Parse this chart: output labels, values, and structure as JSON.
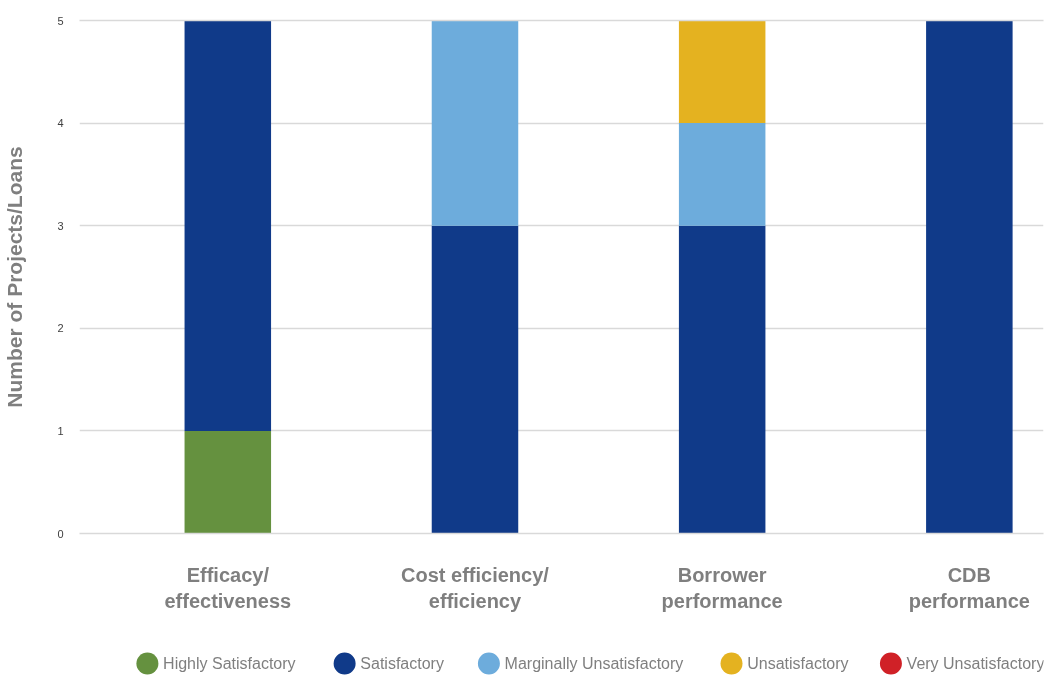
{
  "chart_data": {
    "type": "bar",
    "stacked": true,
    "ylabel": "Number of Projects/Loans",
    "categories": [
      "Efficacy/effectiveness",
      "Cost efficiency/efficiency",
      "Borrower performance",
      "CDB performance"
    ],
    "series": [
      {
        "name": "Highly Satisfactory",
        "color": "#65913f",
        "values": [
          1,
          0,
          0,
          0
        ]
      },
      {
        "name": "Satisfactory",
        "color": "#103a89",
        "values": [
          4,
          3,
          3,
          5
        ]
      },
      {
        "name": "Marginally Unsatisfactory",
        "color": "#6dacdc",
        "values": [
          0,
          2,
          1,
          0
        ]
      },
      {
        "name": "Unsatisfactory",
        "color": "#e4b220",
        "values": [
          0,
          0,
          1,
          0
        ]
      },
      {
        "name": "Very Unsatisfactory",
        "color": "#d02127",
        "values": [
          0,
          0,
          0,
          0
        ]
      }
    ],
    "ylim": [
      0,
      5
    ],
    "yticks": [
      0,
      1,
      2,
      3,
      4,
      5
    ],
    "grid": "y",
    "legend": "bottom"
  }
}
